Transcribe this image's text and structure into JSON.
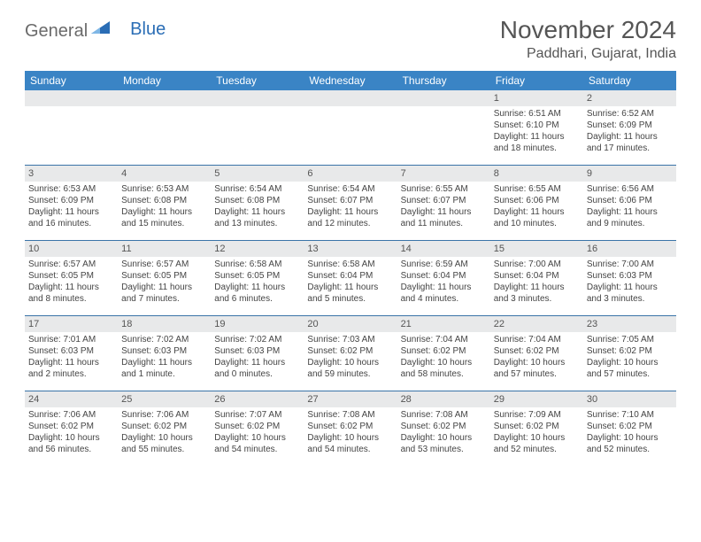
{
  "logo": {
    "part1": "General",
    "part2": "Blue"
  },
  "title": "November 2024",
  "location": "Paddhari, Gujarat, India",
  "header_bg": "#3a84c5",
  "divider_color": "#3a74a8",
  "daynum_bg": "#e8e9ea",
  "text_color": "#444444",
  "weekdays": [
    "Sunday",
    "Monday",
    "Tuesday",
    "Wednesday",
    "Thursday",
    "Friday",
    "Saturday"
  ],
  "weeks": [
    [
      null,
      null,
      null,
      null,
      null,
      {
        "n": "1",
        "sr": "6:51 AM",
        "ss": "6:10 PM",
        "dl": "11 hours and 18 minutes."
      },
      {
        "n": "2",
        "sr": "6:52 AM",
        "ss": "6:09 PM",
        "dl": "11 hours and 17 minutes."
      }
    ],
    [
      {
        "n": "3",
        "sr": "6:53 AM",
        "ss": "6:09 PM",
        "dl": "11 hours and 16 minutes."
      },
      {
        "n": "4",
        "sr": "6:53 AM",
        "ss": "6:08 PM",
        "dl": "11 hours and 15 minutes."
      },
      {
        "n": "5",
        "sr": "6:54 AM",
        "ss": "6:08 PM",
        "dl": "11 hours and 13 minutes."
      },
      {
        "n": "6",
        "sr": "6:54 AM",
        "ss": "6:07 PM",
        "dl": "11 hours and 12 minutes."
      },
      {
        "n": "7",
        "sr": "6:55 AM",
        "ss": "6:07 PM",
        "dl": "11 hours and 11 minutes."
      },
      {
        "n": "8",
        "sr": "6:55 AM",
        "ss": "6:06 PM",
        "dl": "11 hours and 10 minutes."
      },
      {
        "n": "9",
        "sr": "6:56 AM",
        "ss": "6:06 PM",
        "dl": "11 hours and 9 minutes."
      }
    ],
    [
      {
        "n": "10",
        "sr": "6:57 AM",
        "ss": "6:05 PM",
        "dl": "11 hours and 8 minutes."
      },
      {
        "n": "11",
        "sr": "6:57 AM",
        "ss": "6:05 PM",
        "dl": "11 hours and 7 minutes."
      },
      {
        "n": "12",
        "sr": "6:58 AM",
        "ss": "6:05 PM",
        "dl": "11 hours and 6 minutes."
      },
      {
        "n": "13",
        "sr": "6:58 AM",
        "ss": "6:04 PM",
        "dl": "11 hours and 5 minutes."
      },
      {
        "n": "14",
        "sr": "6:59 AM",
        "ss": "6:04 PM",
        "dl": "11 hours and 4 minutes."
      },
      {
        "n": "15",
        "sr": "7:00 AM",
        "ss": "6:04 PM",
        "dl": "11 hours and 3 minutes."
      },
      {
        "n": "16",
        "sr": "7:00 AM",
        "ss": "6:03 PM",
        "dl": "11 hours and 3 minutes."
      }
    ],
    [
      {
        "n": "17",
        "sr": "7:01 AM",
        "ss": "6:03 PM",
        "dl": "11 hours and 2 minutes."
      },
      {
        "n": "18",
        "sr": "7:02 AM",
        "ss": "6:03 PM",
        "dl": "11 hours and 1 minute."
      },
      {
        "n": "19",
        "sr": "7:02 AM",
        "ss": "6:03 PM",
        "dl": "11 hours and 0 minutes."
      },
      {
        "n": "20",
        "sr": "7:03 AM",
        "ss": "6:02 PM",
        "dl": "10 hours and 59 minutes."
      },
      {
        "n": "21",
        "sr": "7:04 AM",
        "ss": "6:02 PM",
        "dl": "10 hours and 58 minutes."
      },
      {
        "n": "22",
        "sr": "7:04 AM",
        "ss": "6:02 PM",
        "dl": "10 hours and 57 minutes."
      },
      {
        "n": "23",
        "sr": "7:05 AM",
        "ss": "6:02 PM",
        "dl": "10 hours and 57 minutes."
      }
    ],
    [
      {
        "n": "24",
        "sr": "7:06 AM",
        "ss": "6:02 PM",
        "dl": "10 hours and 56 minutes."
      },
      {
        "n": "25",
        "sr": "7:06 AM",
        "ss": "6:02 PM",
        "dl": "10 hours and 55 minutes."
      },
      {
        "n": "26",
        "sr": "7:07 AM",
        "ss": "6:02 PM",
        "dl": "10 hours and 54 minutes."
      },
      {
        "n": "27",
        "sr": "7:08 AM",
        "ss": "6:02 PM",
        "dl": "10 hours and 54 minutes."
      },
      {
        "n": "28",
        "sr": "7:08 AM",
        "ss": "6:02 PM",
        "dl": "10 hours and 53 minutes."
      },
      {
        "n": "29",
        "sr": "7:09 AM",
        "ss": "6:02 PM",
        "dl": "10 hours and 52 minutes."
      },
      {
        "n": "30",
        "sr": "7:10 AM",
        "ss": "6:02 PM",
        "dl": "10 hours and 52 minutes."
      }
    ]
  ],
  "labels": {
    "sunrise": "Sunrise: ",
    "sunset": "Sunset: ",
    "daylight": "Daylight: "
  }
}
